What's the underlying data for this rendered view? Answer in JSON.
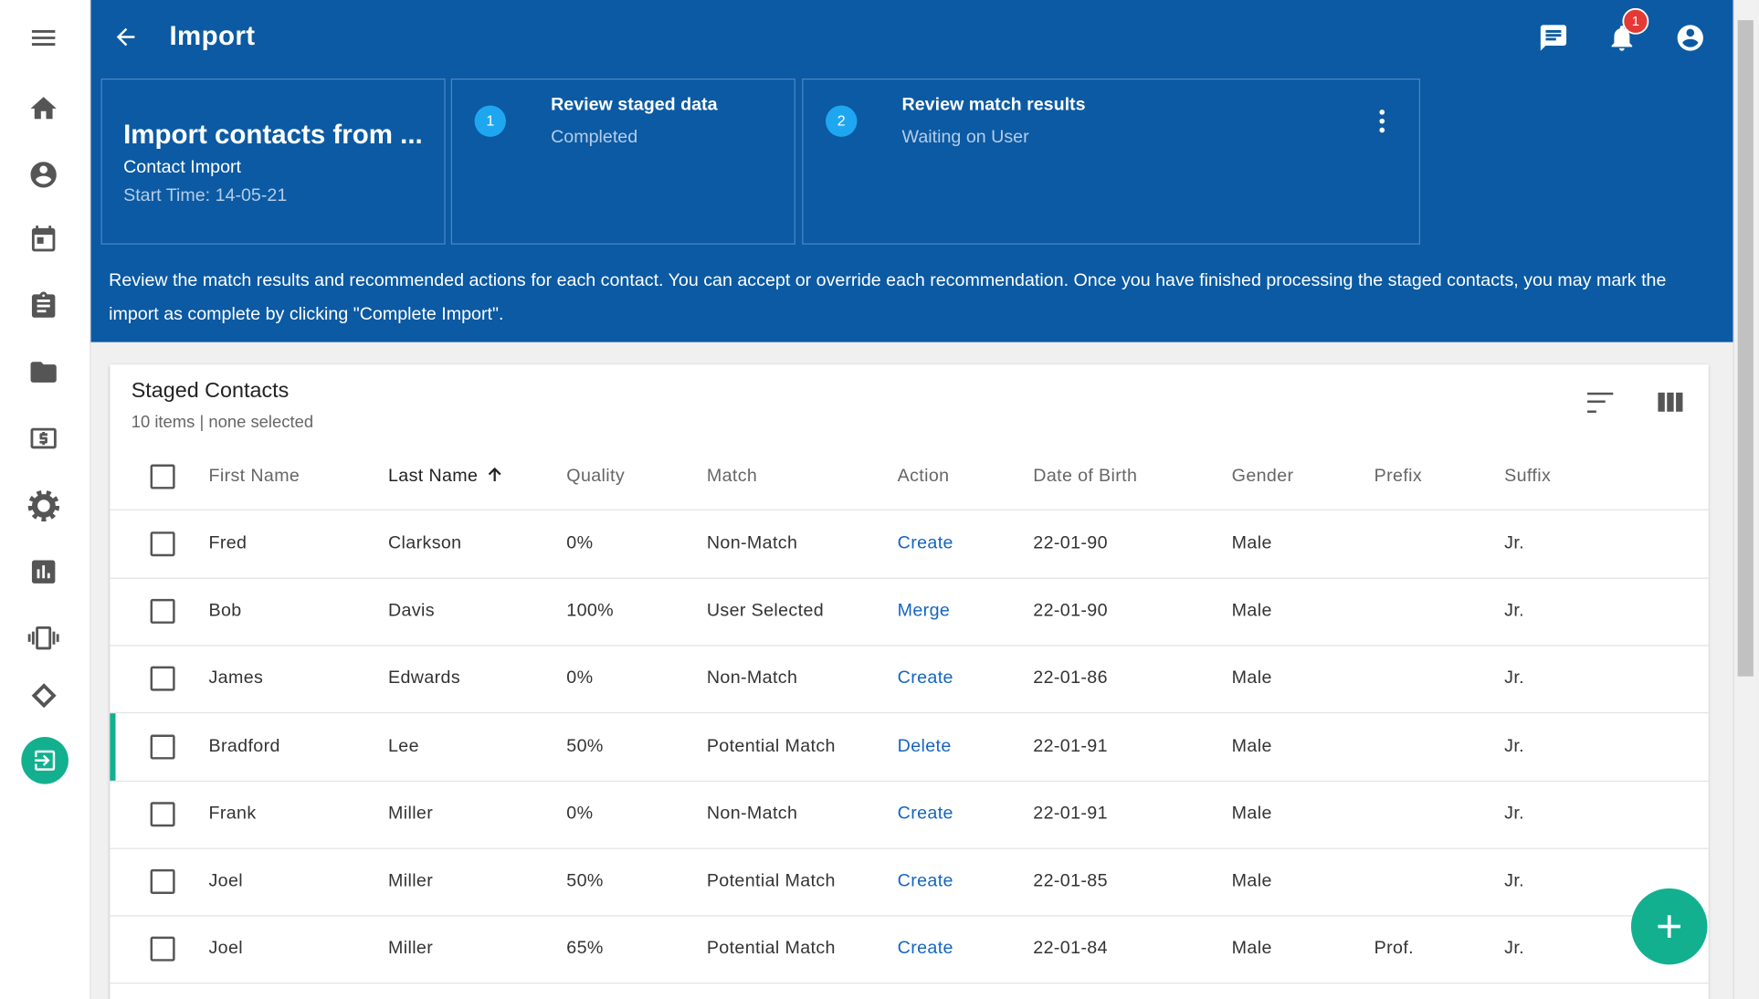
{
  "header": {
    "title": "Import",
    "notification_count": "1"
  },
  "summary_card": {
    "title": "Import contacts from ...",
    "subtitle": "Contact Import",
    "start_time": "Start Time: 14-05-21"
  },
  "steps": [
    {
      "number": "1",
      "title": "Review staged data",
      "status": "Completed"
    },
    {
      "number": "2",
      "title": "Review match results",
      "status": "Waiting on User"
    }
  ],
  "instructions": "Review the match results and recommended actions for each contact. You can accept or override each recommendation. Once you have finished processing the staged contacts, you may mark the import as complete by clicking \"Complete Import\".",
  "table": {
    "title": "Staged Contacts",
    "count": "10 items | none selected",
    "columns": [
      "First Name",
      "Last Name",
      "Quality",
      "Match",
      "Action",
      "Date of Birth",
      "Gender",
      "Prefix",
      "Suffix"
    ],
    "rows": [
      [
        "Fred",
        "Clarkson",
        "0%",
        "Non-Match",
        "Create",
        "22-01-90",
        "Male",
        null,
        "Jr."
      ],
      [
        "Bob",
        "Davis",
        "100%",
        "User Selected",
        "Merge",
        "22-01-90",
        "Male",
        null,
        "Jr."
      ],
      [
        "James",
        "Edwards",
        "0%",
        "Non-Match",
        "Create",
        "22-01-86",
        "Male",
        null,
        "Jr."
      ],
      [
        "Bradford",
        "Lee",
        "50%",
        "Potential Match",
        "Delete",
        "22-01-91",
        "Male",
        null,
        "Jr."
      ],
      [
        "Frank",
        "Miller",
        "0%",
        "Non-Match",
        "Create",
        "22-01-91",
        "Male",
        null,
        "Jr."
      ],
      [
        "Joel",
        "Miller",
        "50%",
        "Potential Match",
        "Create",
        "22-01-85",
        "Male",
        null,
        "Jr."
      ],
      [
        "Joel",
        "Miller",
        "65%",
        "Potential Match",
        "Create",
        "22-01-84",
        "Male",
        "Prof.",
        "Jr."
      ]
    ]
  }
}
